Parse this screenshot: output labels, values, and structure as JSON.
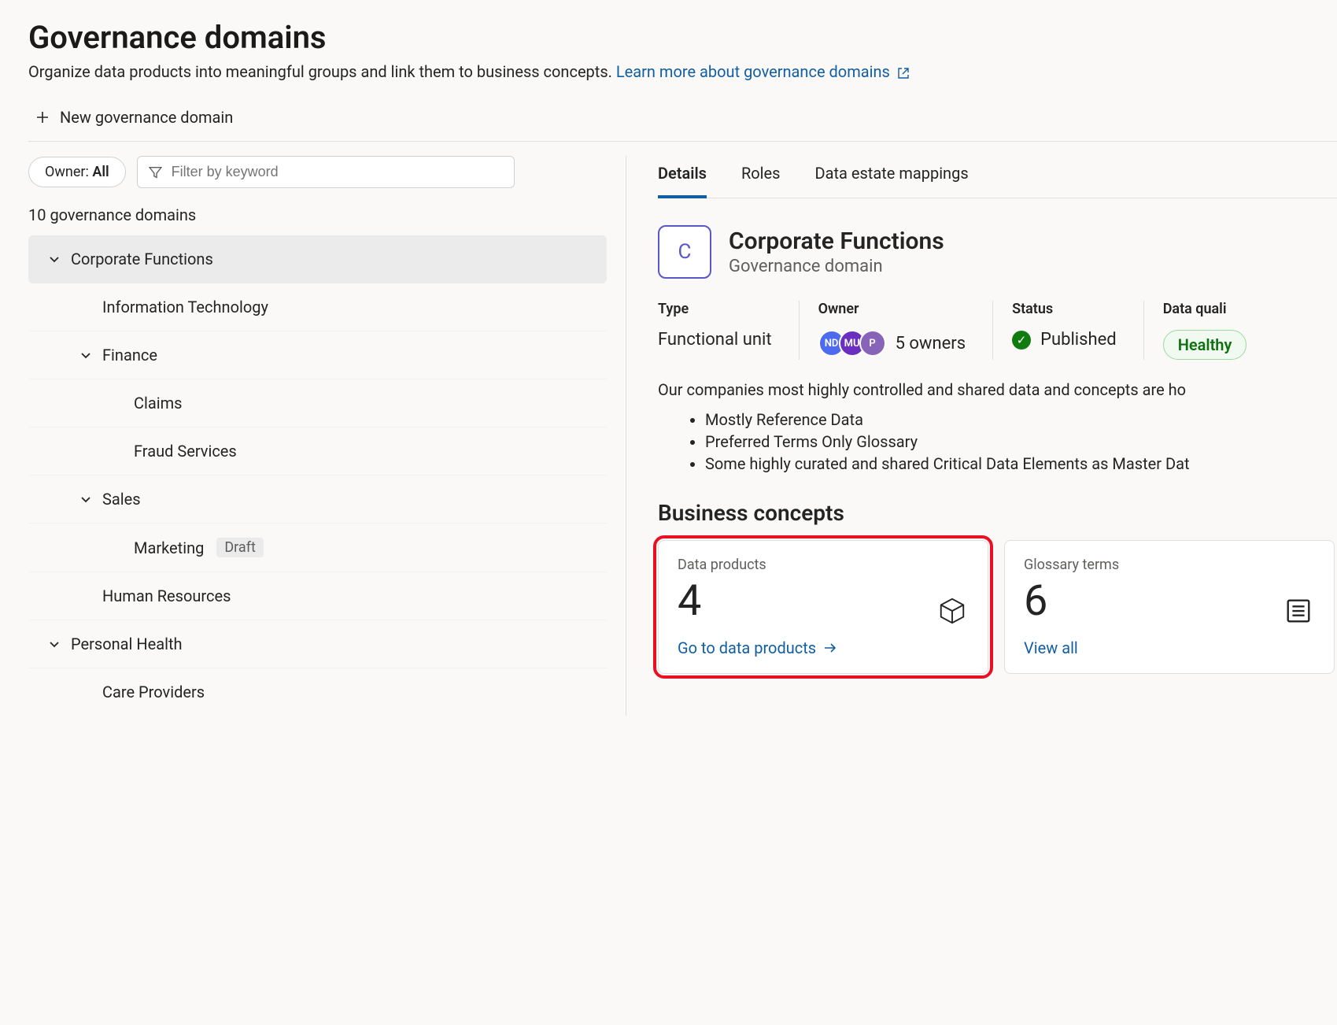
{
  "header": {
    "title": "Governance domains",
    "subtitle_text": "Organize data products into meaningful groups and link them to business concepts. ",
    "learn_more_label": "Learn more about governance domains",
    "new_domain_label": "New governance domain"
  },
  "filters": {
    "owner_prefix": "Owner: ",
    "owner_value": "All",
    "filter_placeholder": "Filter by keyword"
  },
  "tree": {
    "count_label": "10 governance domains",
    "items": [
      {
        "label": "Corporate Functions",
        "indent": 0,
        "expandable": true,
        "expanded": true,
        "selected": true
      },
      {
        "label": "Information Technology",
        "indent": 1,
        "expandable": false
      },
      {
        "label": "Finance",
        "indent": 1,
        "expandable": true,
        "expanded": true
      },
      {
        "label": "Claims",
        "indent": 2,
        "expandable": false
      },
      {
        "label": "Fraud Services",
        "indent": 2,
        "expandable": false
      },
      {
        "label": "Sales",
        "indent": 1,
        "expandable": true,
        "expanded": true
      },
      {
        "label": "Marketing",
        "indent": 2,
        "expandable": false,
        "badge": "Draft"
      },
      {
        "label": "Human Resources",
        "indent": 1,
        "expandable": false
      },
      {
        "label": "Personal Health",
        "indent": 0,
        "expandable": true,
        "expanded": true
      },
      {
        "label": "Care Providers",
        "indent": 1,
        "expandable": false
      }
    ]
  },
  "tabs": {
    "items": [
      "Details",
      "Roles",
      "Data estate mappings"
    ],
    "active_index": 0
  },
  "domain": {
    "initial": "C",
    "name": "Corporate Functions",
    "subtype_label": "Governance domain",
    "meta": {
      "type_label": "Type",
      "type_value": "Functional unit",
      "owner_label": "Owner",
      "owner_avatars": [
        "ND",
        "MU",
        "P"
      ],
      "owner_count_label": "5 owners",
      "status_label": "Status",
      "status_value": "Published",
      "dq_label": "Data quali",
      "dq_value": "Healthy"
    },
    "description": "Our companies most highly controlled and shared data and concepts are ho",
    "bullets": [
      "Mostly Reference Data",
      "Preferred Terms Only Glossary",
      "Some highly curated and shared Critical Data Elements as Master Dat"
    ]
  },
  "business_concepts": {
    "section_title": "Business concepts",
    "cards": [
      {
        "label": "Data products",
        "count": "4",
        "link": "Go to data products",
        "icon": "cube",
        "highlight": true
      },
      {
        "label": "Glossary terms",
        "count": "6",
        "link": "View all",
        "icon": "list",
        "highlight": false
      }
    ]
  },
  "colors": {
    "accent": "#115ea3",
    "brand_purple": "#5b57c7",
    "highlight_red": "#e81123",
    "success": "#107c10"
  }
}
